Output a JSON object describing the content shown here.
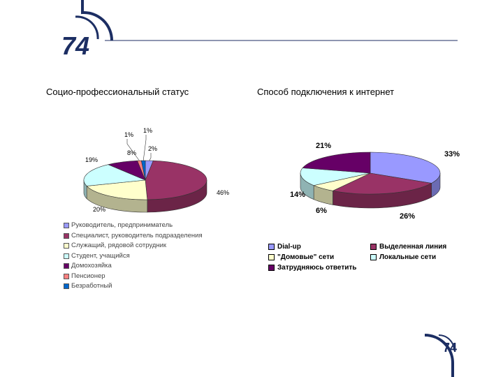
{
  "logo": {
    "top_text": "74",
    "bottom_text": "74",
    "color": "#1c2e63"
  },
  "chart_data": [
    {
      "type": "pie",
      "title": "Социо-профессиональный статус",
      "categories": [
        "Руководитель, предприниматель",
        "Специалист, руководитель подразделения",
        "Служащий, рядовой сотрудник",
        "Студент, учащийся",
        "Домохозяйка",
        "Пенсионер",
        "Безработный"
      ],
      "values": [
        2,
        46,
        20,
        19,
        8,
        1,
        1
      ],
      "labels": [
        "2%",
        "46%",
        "20%",
        "19%",
        "8%",
        "1%",
        "1%"
      ],
      "colors": [
        "#9999ff",
        "#993366",
        "#ffffcc",
        "#ccffff",
        "#660066",
        "#ff8080",
        "#0066cc"
      ],
      "legend": "bottom-left"
    },
    {
      "type": "pie",
      "title": "Способ подключения к интернет",
      "categories": [
        "Dial-up",
        "Выделенная линия",
        "\"Домовые\" сети",
        "Локальные сети",
        "Затрудняюсь ответить"
      ],
      "values": [
        33,
        26,
        6,
        14,
        21
      ],
      "labels": [
        "33%",
        "26%",
        "6%",
        "14%",
        "21%"
      ],
      "colors": [
        "#9999ff",
        "#993366",
        "#ffffcc",
        "#ccffff",
        "#660066"
      ],
      "legend": "bottom"
    }
  ]
}
